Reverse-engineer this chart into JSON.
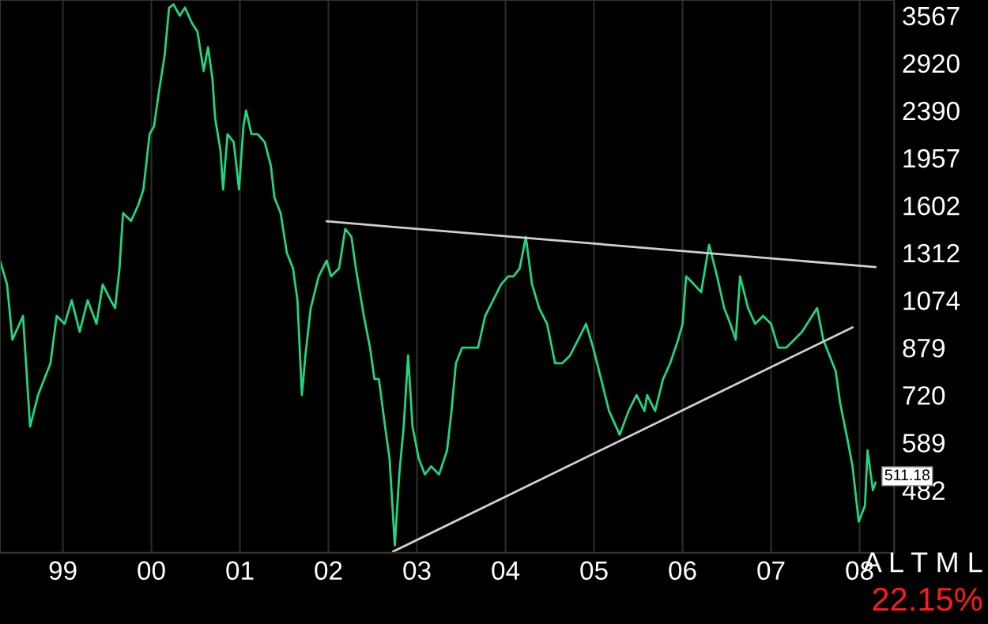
{
  "chart_data": {
    "type": "line",
    "series": [
      {
        "color": "#22d67e",
        "x": [
          1998.29,
          1998.37,
          1998.43,
          1998.55,
          1998.63,
          1998.72,
          1998.86,
          1998.93,
          1999.02,
          1999.1,
          1999.19,
          1999.28,
          1999.38,
          1999.45,
          1999.54,
          1999.59,
          1999.64,
          1999.68,
          1999.77,
          1999.85,
          1999.91,
          1999.98,
          2000.03,
          2000.08,
          2000.15,
          2000.2,
          2000.25,
          2000.32,
          2000.38,
          2000.46,
          2000.52,
          2000.59,
          2000.64,
          2000.69,
          2000.72,
          2000.78,
          2000.81,
          2000.86,
          2000.93,
          2000.99,
          2001.04,
          2001.07,
          2001.13,
          2001.2,
          2001.28,
          2001.35,
          2001.39,
          2001.46,
          2001.53,
          2001.6,
          2001.65,
          2001.7,
          2001.74,
          2001.8,
          2001.89,
          2001.98,
          2002.03,
          2002.12,
          2002.19,
          2002.26,
          2002.31,
          2002.4,
          2002.47,
          2002.52,
          2002.57,
          2002.64,
          2002.69,
          2002.75,
          2002.8,
          2002.85,
          2002.9,
          2002.95,
          2003.02,
          2003.09,
          2003.16,
          2003.25,
          2003.34,
          2003.39,
          2003.44,
          2003.51,
          2003.6,
          2003.69,
          2003.77,
          2003.86,
          2003.95,
          2004.03,
          2004.09,
          2004.16,
          2004.23,
          2004.3,
          2004.38,
          2004.47,
          2004.56,
          2004.64,
          2004.73,
          2004.82,
          2004.91,
          2004.99,
          2005.08,
          2005.17,
          2005.29,
          2005.39,
          2005.48,
          2005.57,
          2005.6,
          2005.69,
          2005.78,
          2005.86,
          2005.95,
          2006.0,
          2006.04,
          2006.13,
          2006.21,
          2006.3,
          2006.39,
          2006.47,
          2006.54,
          2006.6,
          2006.65,
          2006.74,
          2006.82,
          2006.91,
          2007.0,
          2007.08,
          2007.17,
          2007.26,
          2007.35,
          2007.52,
          2007.59,
          2007.66,
          2007.73,
          2007.78,
          2007.87,
          2007.92,
          2007.99,
          2008.06,
          2008.09,
          2008.15,
          2008.18
        ],
        "values": [
          1269,
          1148,
          909,
          1005,
          630,
          720,
          823,
          1005,
          972,
          1074,
          940,
          1074,
          972,
          1148,
          1074,
          1039,
          1228,
          1551,
          1500,
          1602,
          1713,
          2164,
          2237,
          2555,
          3019,
          3688,
          3740,
          3567,
          3688,
          3451,
          3337,
          2825,
          3121,
          2732,
          2313,
          2024,
          1713,
          2164,
          2092,
          1713,
          2237,
          2390,
          2164,
          2164,
          2092,
          1894,
          1656,
          1551,
          1312,
          1228,
          1074,
          720,
          851,
          1039,
          1188,
          1269,
          1188,
          1228,
          1451,
          1403,
          1228,
          1005,
          879,
          770,
          770,
          630,
          551,
          382,
          515,
          630,
          851,
          630,
          551,
          515,
          533,
          515,
          570,
          673,
          823,
          879,
          879,
          879,
          1005,
          1074,
          1148,
          1188,
          1188,
          1228,
          1403,
          1148,
          1039,
          972,
          823,
          823,
          851,
          909,
          972,
          879,
          770,
          673,
          609,
          673,
          720,
          673,
          720,
          673,
          770,
          823,
          909,
          972,
          1188,
          1148,
          1111,
          1357,
          1188,
          1039,
          972,
          909,
          1188,
          1039,
          972,
          1005,
          972,
          879,
          879,
          909,
          940,
          1039,
          909,
          851,
          796,
          696,
          589,
          533,
          422,
          451,
          570,
          482,
          498
        ]
      },
      {
        "type": "line",
        "color": "#d0d0d0",
        "x": [
          2001.98,
          2008.18
        ],
        "values": [
          1498,
          1235
        ]
      },
      {
        "type": "line",
        "color": "#d0d0d0",
        "x": [
          2002.73,
          2007.92
        ],
        "values": [
          372,
          958
        ]
      }
    ],
    "log": true,
    "xlim": [
      1998.29,
      2008.39
    ],
    "xticks": [
      {
        "value": 1999,
        "label": "99"
      },
      {
        "value": 2000,
        "label": "00"
      },
      {
        "value": 2001,
        "label": "01"
      },
      {
        "value": 2002,
        "label": "02"
      },
      {
        "value": 2003,
        "label": "03"
      },
      {
        "value": 2004,
        "label": "04"
      },
      {
        "value": 2005,
        "label": "05"
      },
      {
        "value": 2006,
        "label": "06"
      },
      {
        "value": 2007,
        "label": "07"
      },
      {
        "value": 2008,
        "label": "08"
      }
    ],
    "ylim": [
      370,
      3810
    ],
    "yticks": [
      482,
      589,
      720,
      879,
      1074,
      1312,
      1602,
      1957,
      2390,
      2920,
      3567
    ],
    "grid": "x",
    "annotations": [
      {
        "text": "511.18",
        "x": 2008.18,
        "y": 511.18
      },
      "A L T M L",
      "22.15%"
    ]
  }
}
